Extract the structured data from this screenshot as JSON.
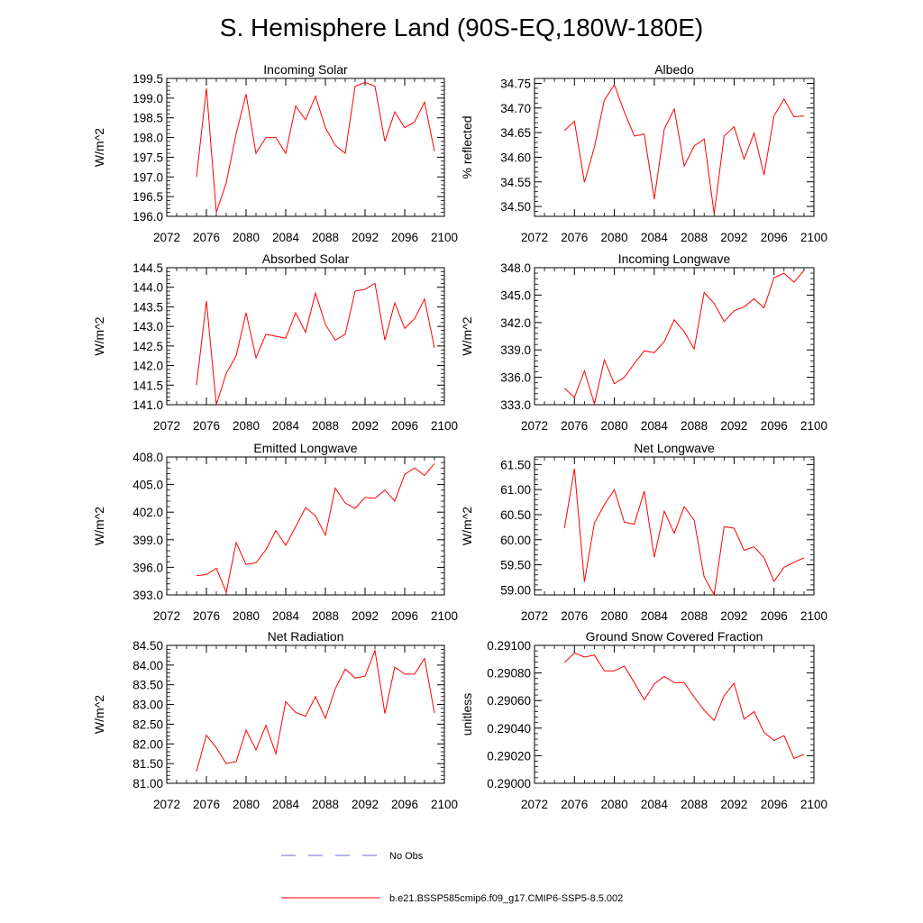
{
  "figure": {
    "title": "S. Hemisphere Land (90S-EQ,180W-180E)",
    "line_color": "#ff0000",
    "obs_color": "#6b6bd6"
  },
  "legend": {
    "items": [
      {
        "label": "No Obs",
        "style": "dashed",
        "color": "#6b6bd6"
      },
      {
        "label": "b.e21.BSSP585cmip6.f09_g17.CMIP6-SSP5-8.5.002",
        "style": "solid",
        "color": "#ff0000"
      }
    ]
  },
  "chart_data": [
    {
      "type": "line",
      "title": "Incoming Solar",
      "ylabel": "W/m^2",
      "xlim": [
        2072,
        2100
      ],
      "ylim": [
        196.0,
        199.5
      ],
      "yticks": [
        "196.0",
        "196.5",
        "197.0",
        "197.5",
        "198.0",
        "198.5",
        "199.0",
        "199.5"
      ],
      "xticks": [
        "2072",
        "2076",
        "2080",
        "2084",
        "2088",
        "2092",
        "2096",
        "2100"
      ],
      "x": [
        2075,
        2076,
        2077,
        2078,
        2079,
        2080,
        2081,
        2082,
        2083,
        2084,
        2085,
        2086,
        2087,
        2088,
        2089,
        2090,
        2091,
        2092,
        2093,
        2094,
        2095,
        2096,
        2097,
        2098,
        2099
      ],
      "series": [
        {
          "values": [
            197.0,
            199.25,
            196.1,
            196.85,
            198.1,
            199.1,
            197.6,
            198.0,
            198.0,
            197.6,
            198.8,
            198.45,
            199.05,
            198.25,
            197.8,
            197.6,
            199.3,
            199.4,
            199.3,
            197.9,
            198.65,
            198.25,
            198.4,
            198.9,
            197.65
          ]
        }
      ]
    },
    {
      "type": "line",
      "title": "Albedo",
      "ylabel": "% reflected",
      "xlim": [
        2072,
        2100
      ],
      "ylim": [
        34.48,
        34.76
      ],
      "yticks": [
        "34.50",
        "34.55",
        "34.60",
        "34.65",
        "34.70",
        "34.75"
      ],
      "xticks": [
        "2072",
        "2076",
        "2080",
        "2084",
        "2088",
        "2092",
        "2096",
        "2100"
      ],
      "x": [
        2075,
        2076,
        2077,
        2078,
        2079,
        2080,
        2081,
        2082,
        2083,
        2084,
        2085,
        2086,
        2087,
        2088,
        2089,
        2090,
        2091,
        2092,
        2093,
        2094,
        2095,
        2096,
        2097,
        2098,
        2099
      ],
      "series": [
        {
          "values": [
            34.654,
            34.673,
            34.549,
            34.62,
            34.716,
            34.747,
            34.692,
            34.643,
            34.647,
            34.515,
            34.657,
            34.698,
            34.582,
            34.623,
            34.637,
            34.485,
            34.643,
            34.662,
            34.596,
            34.649,
            34.564,
            34.684,
            34.718,
            34.682,
            34.684
          ]
        }
      ]
    },
    {
      "type": "line",
      "title": "Absorbed Solar",
      "ylabel": "W/m^2",
      "xlim": [
        2072,
        2100
      ],
      "ylim": [
        141.0,
        144.5
      ],
      "yticks": [
        "141.0",
        "141.5",
        "142.0",
        "142.5",
        "143.0",
        "143.5",
        "144.0",
        "144.5"
      ],
      "xticks": [
        "2072",
        "2076",
        "2080",
        "2084",
        "2088",
        "2092",
        "2096",
        "2100"
      ],
      "x": [
        2075,
        2076,
        2077,
        2078,
        2079,
        2080,
        2081,
        2082,
        2083,
        2084,
        2085,
        2086,
        2087,
        2088,
        2089,
        2090,
        2091,
        2092,
        2093,
        2094,
        2095,
        2096,
        2097,
        2098,
        2099
      ],
      "series": [
        {
          "values": [
            141.5,
            143.65,
            141.0,
            141.8,
            142.25,
            143.35,
            142.2,
            142.8,
            142.75,
            142.7,
            143.35,
            142.85,
            143.85,
            143.05,
            142.65,
            142.8,
            143.9,
            143.95,
            144.1,
            142.65,
            143.6,
            142.95,
            143.2,
            143.7,
            142.45
          ]
        }
      ]
    },
    {
      "type": "line",
      "title": "Incoming Longwave",
      "ylabel": "W/m^2",
      "xlim": [
        2072,
        2100
      ],
      "ylim": [
        333.0,
        348.0
      ],
      "yticks": [
        "333.0",
        "336.0",
        "339.0",
        "342.0",
        "345.0",
        "348.0"
      ],
      "xticks": [
        "2072",
        "2076",
        "2080",
        "2084",
        "2088",
        "2092",
        "2096",
        "2100"
      ],
      "x": [
        2075,
        2076,
        2077,
        2078,
        2079,
        2080,
        2081,
        2082,
        2083,
        2084,
        2085,
        2086,
        2087,
        2088,
        2089,
        2090,
        2091,
        2092,
        2093,
        2094,
        2095,
        2096,
        2097,
        2098,
        2099
      ],
      "series": [
        {
          "values": [
            334.8,
            333.8,
            336.7,
            333.1,
            337.9,
            335.3,
            336.0,
            337.5,
            338.9,
            338.7,
            339.9,
            342.3,
            341.0,
            339.1,
            345.3,
            344.1,
            342.1,
            343.3,
            343.7,
            344.6,
            343.6,
            346.9,
            347.4,
            346.4,
            347.7
          ]
        }
      ]
    },
    {
      "type": "line",
      "title": "Emitted Longwave",
      "ylabel": "W/m^2",
      "xlim": [
        2072,
        2100
      ],
      "ylim": [
        393.0,
        408.0
      ],
      "yticks": [
        "393.0",
        "396.0",
        "399.0",
        "402.0",
        "405.0",
        "408.0"
      ],
      "xticks": [
        "2072",
        "2076",
        "2080",
        "2084",
        "2088",
        "2092",
        "2096",
        "2100"
      ],
      "x": [
        2075,
        2076,
        2077,
        2078,
        2079,
        2080,
        2081,
        2082,
        2083,
        2084,
        2085,
        2086,
        2087,
        2088,
        2089,
        2090,
        2091,
        2092,
        2093,
        2094,
        2095,
        2096,
        2097,
        2098,
        2099
      ],
      "series": [
        {
          "values": [
            395.1,
            395.2,
            395.9,
            393.3,
            398.7,
            396.3,
            396.5,
            397.9,
            400.0,
            398.4,
            400.4,
            402.5,
            401.6,
            399.5,
            404.6,
            403.0,
            402.4,
            403.6,
            403.5,
            404.4,
            403.2,
            406.1,
            406.8,
            406.0,
            407.3
          ]
        }
      ]
    },
    {
      "type": "line",
      "title": "Net Longwave",
      "ylabel": "W/m^2",
      "xlim": [
        2072,
        2100
      ],
      "ylim": [
        58.9,
        61.65
      ],
      "yticks": [
        "59.00",
        "59.50",
        "60.00",
        "60.50",
        "61.00",
        "61.50"
      ],
      "xticks": [
        "2072",
        "2076",
        "2080",
        "2084",
        "2088",
        "2092",
        "2096",
        "2100"
      ],
      "x": [
        2075,
        2076,
        2077,
        2078,
        2079,
        2080,
        2081,
        2082,
        2083,
        2084,
        2085,
        2086,
        2087,
        2088,
        2089,
        2090,
        2091,
        2092,
        2093,
        2094,
        2095,
        2096,
        2097,
        2098,
        2099
      ],
      "series": [
        {
          "values": [
            60.23,
            61.42,
            59.16,
            60.33,
            60.7,
            61.0,
            60.35,
            60.31,
            60.97,
            59.65,
            60.57,
            60.13,
            60.66,
            60.39,
            59.26,
            58.9,
            60.26,
            60.23,
            59.79,
            59.86,
            59.64,
            59.17,
            59.45,
            59.55,
            59.64
          ]
        }
      ]
    },
    {
      "type": "line",
      "title": "Net Radiation",
      "ylabel": "W/m^2",
      "xlim": [
        2072,
        2100
      ],
      "ylim": [
        81.0,
        84.5
      ],
      "yticks": [
        "81.00",
        "81.50",
        "82.00",
        "82.50",
        "83.00",
        "83.50",
        "84.00",
        "84.50"
      ],
      "xticks": [
        "2072",
        "2076",
        "2080",
        "2084",
        "2088",
        "2092",
        "2096",
        "2100"
      ],
      "x": [
        2075,
        2076,
        2077,
        2078,
        2079,
        2080,
        2081,
        2082,
        2083,
        2084,
        2085,
        2086,
        2087,
        2088,
        2089,
        2090,
        2091,
        2092,
        2093,
        2094,
        2095,
        2096,
        2097,
        2098,
        2099
      ],
      "series": [
        {
          "values": [
            81.3,
            82.22,
            81.9,
            81.5,
            81.55,
            82.35,
            81.85,
            82.47,
            81.75,
            83.07,
            82.8,
            82.7,
            83.2,
            82.65,
            83.4,
            83.9,
            83.67,
            83.72,
            84.37,
            82.77,
            83.95,
            83.77,
            83.77,
            84.17,
            82.78
          ]
        }
      ]
    },
    {
      "type": "line",
      "title": "Ground Snow Covered Fraction",
      "ylabel": "unitless",
      "xlim": [
        2072,
        2100
      ],
      "ylim": [
        0.29,
        0.291
      ],
      "yticks": [
        "0.29000",
        "0.29020",
        "0.29040",
        "0.29060",
        "0.29080",
        "0.29100"
      ],
      "xticks": [
        "2072",
        "2076",
        "2080",
        "2084",
        "2088",
        "2092",
        "2096",
        "2100"
      ],
      "x": [
        2075,
        2076,
        2077,
        2078,
        2079,
        2080,
        2081,
        2082,
        2083,
        2084,
        2085,
        2086,
        2087,
        2088,
        2089,
        2090,
        2091,
        2092,
        2093,
        2094,
        2095,
        2096,
        2097,
        2098,
        2099
      ],
      "series": [
        {
          "values": [
            0.290875,
            0.290945,
            0.290915,
            0.29093,
            0.290815,
            0.290815,
            0.29085,
            0.29073,
            0.290605,
            0.29072,
            0.290775,
            0.29073,
            0.29073,
            0.290625,
            0.29053,
            0.290455,
            0.290635,
            0.290725,
            0.290465,
            0.29052,
            0.29037,
            0.29031,
            0.290345,
            0.29018,
            0.29021
          ]
        }
      ]
    }
  ]
}
